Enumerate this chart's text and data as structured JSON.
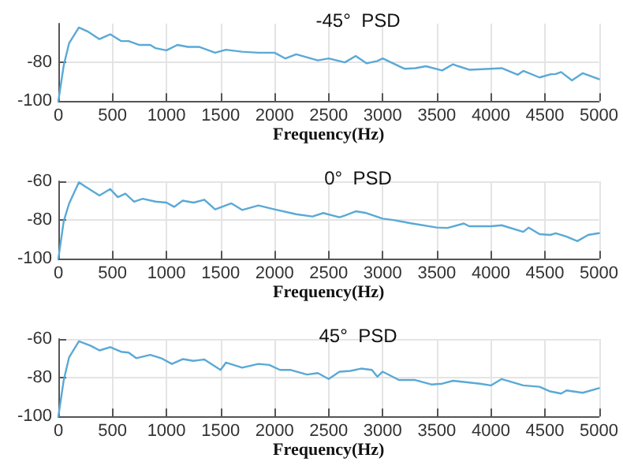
{
  "chart_data": [
    {
      "type": "line",
      "title": "-45°  PSD",
      "xlabel": "Frequency(Hz)",
      "xlim": [
        0,
        5000
      ],
      "xticks": [
        0,
        500,
        1000,
        1500,
        2000,
        2500,
        3000,
        3500,
        4000,
        4500,
        5000
      ],
      "ylim": [
        -100,
        -60
      ],
      "yticks": [
        -100,
        -80
      ],
      "grid": true,
      "marker": "none",
      "line_style": "solid",
      "x": [
        0,
        50,
        100,
        190,
        270,
        380,
        420,
        480,
        580,
        650,
        750,
        850,
        900,
        1000,
        1100,
        1200,
        1300,
        1450,
        1550,
        1700,
        1850,
        2000,
        2100,
        2200,
        2400,
        2500,
        2650,
        2750,
        2850,
        2950,
        3000,
        3200,
        3300,
        3400,
        3550,
        3650,
        3700,
        3800,
        4000,
        4100,
        4250,
        4300,
        4450,
        4550,
        4600,
        4650,
        4750,
        4850,
        5000
      ],
      "series": [
        {
          "color": "#5aa9d6",
          "values": [
            -100,
            -81.5,
            -70,
            -62,
            -64,
            -68,
            -67,
            -65.5,
            -69,
            -69,
            -71,
            -71,
            -72.7,
            -73.8,
            -71,
            -72,
            -72,
            -75,
            -73.5,
            -74.5,
            -75,
            -75,
            -78,
            -75.8,
            -79,
            -78,
            -80,
            -76.7,
            -80.5,
            -79.3,
            -78,
            -83.3,
            -83,
            -82,
            -84.2,
            -81,
            -82,
            -83.8,
            -83.3,
            -83,
            -86.4,
            -84.4,
            -87.8,
            -86.2,
            -86,
            -85,
            -89.3,
            -85.6,
            -88.7
          ]
        }
      ]
    },
    {
      "type": "line",
      "title": "0°  PSD",
      "xlabel": "Frequency(Hz)",
      "xlim": [
        0,
        5000
      ],
      "xticks": [
        0,
        500,
        1000,
        1500,
        2000,
        2500,
        3000,
        3500,
        4000,
        4500,
        5000
      ],
      "ylim": [
        -100,
        -60
      ],
      "yticks": [
        -100,
        -80,
        -60
      ],
      "grid": true,
      "marker": "none",
      "line_style": "solid",
      "x": [
        0,
        50,
        100,
        190,
        250,
        380,
        480,
        550,
        620,
        700,
        780,
        900,
        1000,
        1070,
        1150,
        1250,
        1350,
        1450,
        1600,
        1700,
        1850,
        2000,
        2200,
        2350,
        2450,
        2600,
        2650,
        2750,
        2850,
        3000,
        3100,
        3250,
        3500,
        3600,
        3750,
        3800,
        4000,
        4100,
        4300,
        4350,
        4450,
        4550,
        4600,
        4700,
        4800,
        4900,
        5000
      ],
      "series": [
        {
          "color": "#5aa9d6",
          "values": [
            -100,
            -80.5,
            -71.4,
            -60.5,
            -62.7,
            -67.3,
            -64,
            -68.2,
            -66.4,
            -70.5,
            -69,
            -70.5,
            -71,
            -73.2,
            -70,
            -71,
            -69.5,
            -74.5,
            -71.4,
            -74.8,
            -72.5,
            -74.5,
            -77,
            -78.2,
            -76.4,
            -78.6,
            -77.7,
            -75.5,
            -76.4,
            -79.3,
            -80,
            -81.6,
            -83.9,
            -84.1,
            -81.8,
            -83.2,
            -83.2,
            -82.7,
            -86.1,
            -83.9,
            -87.3,
            -87.7,
            -86.8,
            -88.6,
            -90.9,
            -87.7,
            -86.8
          ]
        }
      ]
    },
    {
      "type": "line",
      "title": "45°  PSD",
      "xlabel": "Frequency(Hz)",
      "xlim": [
        0,
        5000
      ],
      "xticks": [
        0,
        500,
        1000,
        1500,
        2000,
        2500,
        3000,
        3500,
        4000,
        4500,
        5000
      ],
      "ylim": [
        -100,
        -60
      ],
      "yticks": [
        -100,
        -80,
        -60
      ],
      "grid": true,
      "marker": "none",
      "line_style": "solid",
      "x": [
        0,
        50,
        100,
        190,
        300,
        380,
        480,
        580,
        650,
        720,
        850,
        950,
        1050,
        1150,
        1250,
        1350,
        1500,
        1550,
        1700,
        1850,
        1950,
        2050,
        2150,
        2300,
        2400,
        2500,
        2600,
        2700,
        2800,
        2900,
        2950,
        3000,
        3150,
        3300,
        3450,
        3550,
        3650,
        3900,
        4000,
        4100,
        4300,
        4450,
        4550,
        4650,
        4700,
        4850,
        5000
      ],
      "series": [
        {
          "color": "#5aa9d6",
          "values": [
            -100,
            -81.2,
            -69.4,
            -61.2,
            -63.5,
            -65.9,
            -64.2,
            -66.6,
            -67,
            -69.9,
            -68.2,
            -69.9,
            -72.9,
            -70.4,
            -71.3,
            -70.6,
            -76,
            -72.2,
            -74.8,
            -72.9,
            -73.4,
            -76,
            -76,
            -78.4,
            -77.6,
            -80.7,
            -76.9,
            -76.5,
            -75.3,
            -76,
            -79.5,
            -76.9,
            -81.2,
            -81.2,
            -83.5,
            -83.1,
            -81.6,
            -83.1,
            -84,
            -80.7,
            -84,
            -84.7,
            -87.1,
            -88.2,
            -86.6,
            -87.8,
            -85.4
          ]
        }
      ]
    }
  ]
}
